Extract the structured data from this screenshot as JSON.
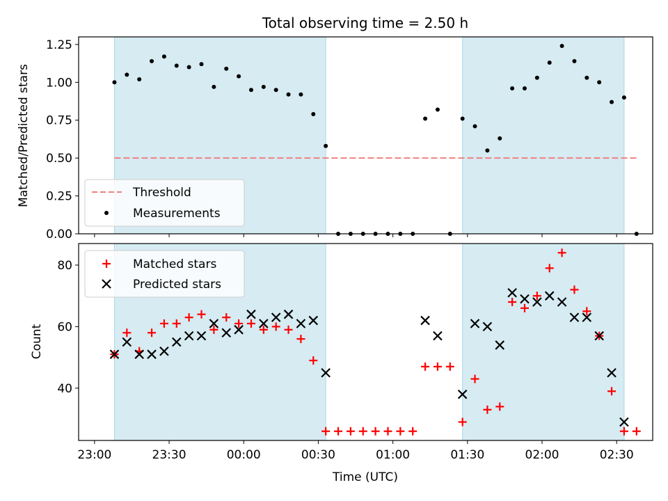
{
  "chart_data": {
    "title": "Total observing time = 2.50 h",
    "xlabel": "Time (UTC)",
    "x_ticks": [
      "23:00",
      "23:30",
      "00:00",
      "00:30",
      "01:00",
      "01:30",
      "02:00",
      "02:30"
    ],
    "x_tick_minutes": [
      0,
      30,
      60,
      90,
      120,
      150,
      180,
      210
    ],
    "shaded_intervals_minutes": [
      [
        8,
        93
      ],
      [
        148,
        213
      ]
    ],
    "shade_color": "#add8e6",
    "panels": [
      {
        "type": "scatter",
        "ylabel": "Matched/Predicted stars",
        "ylim": [
          0,
          1.3
        ],
        "yticks": [
          "0.00",
          "0.25",
          "0.50",
          "0.75",
          "1.00",
          "1.25"
        ],
        "threshold": {
          "label": "Threshold",
          "value": 0.5,
          "x_range_minutes": [
            8,
            218
          ],
          "color": "#f08080",
          "style": "dashed"
        },
        "series": [
          {
            "name": "Measurements",
            "color": "#000000",
            "marker": "dot",
            "points": [
              [
                8,
                1.0
              ],
              [
                13,
                1.05
              ],
              [
                18,
                1.02
              ],
              [
                23,
                1.14
              ],
              [
                28,
                1.17
              ],
              [
                33,
                1.11
              ],
              [
                38,
                1.1
              ],
              [
                43,
                1.12
              ],
              [
                48,
                0.97
              ],
              [
                53,
                1.09
              ],
              [
                58,
                1.04
              ],
              [
                63,
                0.95
              ],
              [
                68,
                0.97
              ],
              [
                73,
                0.95
              ],
              [
                78,
                0.92
              ],
              [
                83,
                0.92
              ],
              [
                88,
                0.79
              ],
              [
                93,
                0.58
              ],
              [
                98,
                0.0
              ],
              [
                103,
                0.0
              ],
              [
                108,
                0.0
              ],
              [
                113,
                0.0
              ],
              [
                118,
                0.0
              ],
              [
                123,
                0.0
              ],
              [
                128,
                0.0
              ],
              [
                133,
                0.76
              ],
              [
                138,
                0.82
              ],
              [
                143,
                0.0
              ],
              [
                148,
                0.76
              ],
              [
                153,
                0.71
              ],
              [
                158,
                0.55
              ],
              [
                163,
                0.63
              ],
              [
                168,
                0.96
              ],
              [
                173,
                0.96
              ],
              [
                178,
                1.03
              ],
              [
                183,
                1.13
              ],
              [
                188,
                1.24
              ],
              [
                193,
                1.14
              ],
              [
                198,
                1.03
              ],
              [
                203,
                1.0
              ],
              [
                208,
                0.87
              ],
              [
                213,
                0.9
              ],
              [
                218,
                0.0
              ]
            ]
          }
        ],
        "legend": [
          "Threshold",
          "Measurements"
        ]
      },
      {
        "type": "scatter",
        "ylabel": "Count",
        "ylim": [
          23,
          87
        ],
        "yticks": [
          "40",
          "60",
          "80"
        ],
        "series": [
          {
            "name": "Matched stars",
            "color": "#ff0000",
            "marker": "plus",
            "points": [
              [
                8,
                51
              ],
              [
                13,
                58
              ],
              [
                18,
                52
              ],
              [
                23,
                58
              ],
              [
                28,
                61
              ],
              [
                33,
                61
              ],
              [
                38,
                63
              ],
              [
                43,
                64
              ],
              [
                48,
                59
              ],
              [
                53,
                63
              ],
              [
                58,
                61
              ],
              [
                63,
                61
              ],
              [
                68,
                59
              ],
              [
                73,
                60
              ],
              [
                78,
                59
              ],
              [
                83,
                56
              ],
              [
                88,
                49
              ],
              [
                93,
                26
              ],
              [
                98,
                26
              ],
              [
                103,
                26
              ],
              [
                108,
                26
              ],
              [
                113,
                26
              ],
              [
                118,
                26
              ],
              [
                123,
                26
              ],
              [
                128,
                26
              ],
              [
                133,
                47
              ],
              [
                138,
                47
              ],
              [
                143,
                47
              ],
              [
                148,
                29
              ],
              [
                153,
                43
              ],
              [
                158,
                33
              ],
              [
                163,
                34
              ],
              [
                168,
                68
              ],
              [
                173,
                66
              ],
              [
                178,
                70
              ],
              [
                183,
                79
              ],
              [
                188,
                84
              ],
              [
                193,
                72
              ],
              [
                198,
                65
              ],
              [
                203,
                57
              ],
              [
                208,
                39
              ],
              [
                213,
                26
              ],
              [
                218,
                26
              ]
            ]
          },
          {
            "name": "Predicted stars",
            "color": "#000000",
            "marker": "x",
            "points": [
              [
                8,
                51
              ],
              [
                13,
                55
              ],
              [
                18,
                51
              ],
              [
                23,
                51
              ],
              [
                28,
                52
              ],
              [
                33,
                55
              ],
              [
                38,
                57
              ],
              [
                43,
                57
              ],
              [
                48,
                61
              ],
              [
                53,
                58
              ],
              [
                58,
                59
              ],
              [
                63,
                64
              ],
              [
                68,
                61
              ],
              [
                73,
                63
              ],
              [
                78,
                64
              ],
              [
                83,
                61
              ],
              [
                88,
                62
              ],
              [
                93,
                45
              ],
              [
                133,
                62
              ],
              [
                138,
                57
              ],
              [
                148,
                38
              ],
              [
                153,
                61
              ],
              [
                158,
                60
              ],
              [
                163,
                54
              ],
              [
                168,
                71
              ],
              [
                173,
                69
              ],
              [
                178,
                68
              ],
              [
                183,
                70
              ],
              [
                188,
                68
              ],
              [
                193,
                63
              ],
              [
                198,
                63
              ],
              [
                203,
                57
              ],
              [
                208,
                45
              ],
              [
                213,
                29
              ]
            ]
          }
        ],
        "legend": [
          "Matched stars",
          "Predicted stars"
        ]
      }
    ]
  }
}
